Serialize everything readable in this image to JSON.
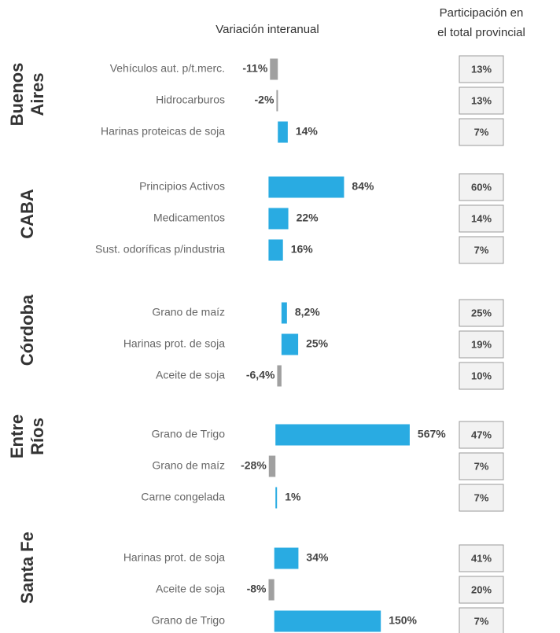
{
  "header": {
    "variation": "Variación interanual",
    "share": [
      "Participación en",
      "el total provincial"
    ]
  },
  "chart_data": [
    {
      "type": "bar",
      "title": [
        "Buenos",
        "Aires"
      ],
      "categories": [
        "Vehículos aut. p/t.merc.",
        "Hidrocarburos",
        "Harinas proteicas de soja"
      ],
      "values": [
        -11,
        -2,
        14
      ],
      "value_labels": [
        "-11%",
        "-2%",
        "14%"
      ],
      "shares": [
        13,
        13,
        7
      ],
      "share_labels": [
        "13%",
        "13%",
        "7%"
      ],
      "xlim": [
        -70,
        240
      ],
      "color": "#29abe2",
      "negative_color": "#a0a0a0"
    },
    {
      "type": "bar",
      "title": [
        "CABA"
      ],
      "categories": [
        "Principios Activos",
        "Medicamentos",
        "Sust. odoríficas p/industria"
      ],
      "values": [
        84,
        22,
        16
      ],
      "value_labels": [
        "84%",
        "22%",
        "16%"
      ],
      "shares": [
        60,
        14,
        7
      ],
      "share_labels": [
        "60%",
        "14%",
        "7%"
      ],
      "xlim": [
        -45,
        200
      ],
      "color": "#29abe2",
      "negative_color": "#a0a0a0"
    },
    {
      "type": "bar",
      "title": [
        "Córdoba"
      ],
      "categories": [
        "Grano de maíz",
        "Harinas prot. de soja",
        "Aceite de soja"
      ],
      "values": [
        8.2,
        25,
        -6.4
      ],
      "value_labels": [
        "8,2%",
        "25%",
        "-6,4%"
      ],
      "shares": [
        25,
        19,
        10
      ],
      "share_labels": [
        "25%",
        "19%",
        "10%"
      ],
      "xlim": [
        -80,
        250
      ],
      "color": "#29abe2",
      "negative_color": "#a0a0a0"
    },
    {
      "type": "bar",
      "title": [
        "Entre",
        "Ríos"
      ],
      "categories": [
        "Grano de Trigo",
        "Grano de maíz",
        "Carne congelada"
      ],
      "values": [
        567,
        -28,
        1
      ],
      "value_labels": [
        "567%",
        "-28%",
        "1%"
      ],
      "shares": [
        47,
        7,
        7
      ],
      "share_labels": [
        "47%",
        "7%",
        "7%"
      ],
      "xlim": [
        -200,
        730
      ],
      "color": "#29abe2",
      "negative_color": "#a0a0a0"
    },
    {
      "type": "bar",
      "title": [
        "Santa Fe"
      ],
      "categories": [
        "Harinas prot. de soja",
        "Aceite de soja",
        "Grano de Trigo"
      ],
      "values": [
        34,
        -8,
        150
      ],
      "value_labels": [
        "34%",
        "-8%",
        "150%"
      ],
      "shares": [
        41,
        20,
        7
      ],
      "share_labels": [
        "41%",
        "20%",
        "7%"
      ],
      "xlim": [
        -65,
        245
      ],
      "color": "#29abe2",
      "negative_color": "#a0a0a0"
    }
  ]
}
